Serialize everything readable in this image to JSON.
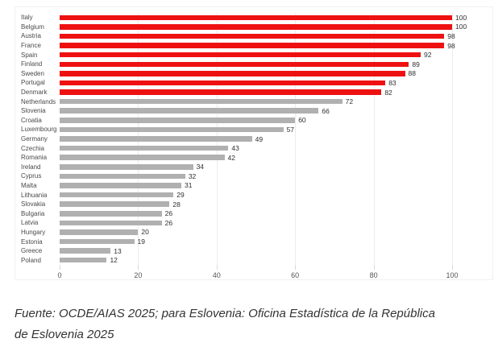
{
  "chart_data": {
    "type": "bar",
    "orientation": "horizontal",
    "categories": [
      "Italy",
      "Belgium",
      "Austria",
      "France",
      "Spain",
      "Finland",
      "Sweden",
      "Portugal",
      "Denmark",
      "Netherlands",
      "Slovenia",
      "Croatia",
      "Luxembourg",
      "Germany",
      "Czechia",
      "Romania",
      "Ireland",
      "Cyprus",
      "Malta",
      "Lithuania",
      "Slovakia",
      "Bulgaria",
      "Latvia",
      "Hungary",
      "Estonia",
      "Greece",
      "Poland"
    ],
    "values": [
      100,
      100,
      98,
      98,
      92,
      89,
      88,
      83,
      82,
      72,
      66,
      60,
      57,
      49,
      43,
      42,
      34,
      32,
      31,
      29,
      28,
      26,
      26,
      20,
      19,
      13,
      12
    ],
    "highlighted_categories": [
      "Italy",
      "Belgium",
      "Austria",
      "France",
      "Spain",
      "Finland",
      "Sweden",
      "Portugal",
      "Denmark"
    ],
    "bar_color_highlight": "#ee1111",
    "bar_color_default": "#b0b0b0",
    "value_labels": true,
    "grid": true,
    "xlim": [
      0,
      100
    ],
    "xticks": [
      0,
      20,
      40,
      60,
      80,
      100
    ],
    "title": "",
    "xlabel": "",
    "ylabel": ""
  },
  "footer": {
    "source_text": "Fuente: OCDE/AIAS 2025; para Eslovenia: Oficina Estadística de la República de Eslovenia 2025"
  }
}
